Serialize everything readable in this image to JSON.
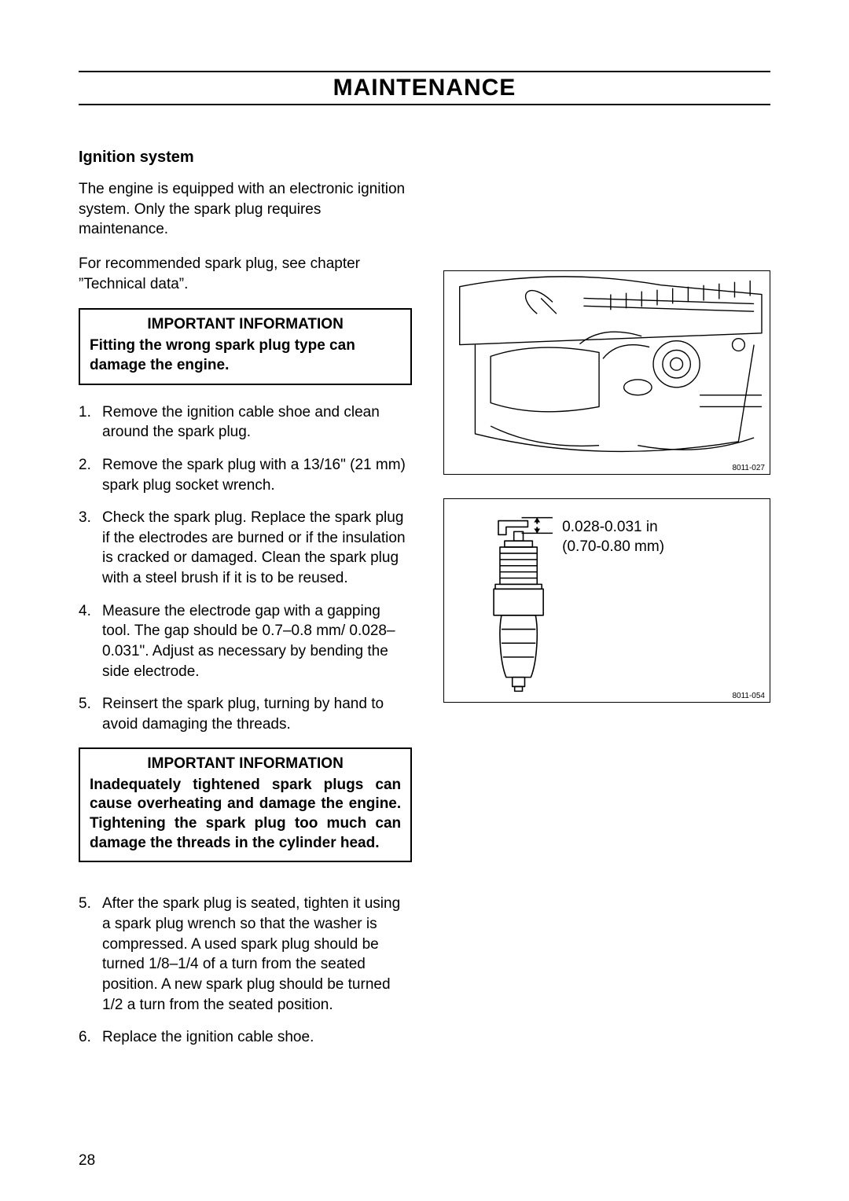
{
  "page_title": "MAINTENANCE",
  "title_fontsize": 30,
  "subhead": "Ignition system",
  "subhead_fontsize": 20,
  "body_fontsize": 19,
  "intro1": "The engine is equipped with an electronic ignition system. Only the spark plug requires maintenance.",
  "intro2": "For recommended spark plug, see chapter ”Technical data”.",
  "callout1_title": "IMPORTANT INFORMATION",
  "callout1_body": "Fitting the wrong spark plug type can damage the engine.",
  "steps_a": [
    "Remove the ignition cable shoe and clean around the spark plug.",
    "Remove the spark plug with a 13/16\" (21 mm) spark plug socket wrench.",
    "Check the spark plug. Replace the spark plug if the electrodes are burned or if the insulation is cracked or damaged. Clean the spark plug with a steel brush if it is to be reused.",
    "Measure the electrode gap with a gapping tool. The gap should be 0.7–0.8 mm/ 0.028–0.031\". Adjust as necessary by bending the side electrode.",
    "Reinsert the spark plug, turning by hand to avoid damaging the threads."
  ],
  "callout2_title": "IMPORTANT INFORMATION",
  "callout2_body": "Inadequately tightened spark plugs can cause overheating and damage the engine. Tightening the spark plug too much can damage the threads in the cylinder head.",
  "steps_b": [
    {
      "n": "5.",
      "t": "After the spark plug is seated, tighten it using a spark plug wrench so that the washer is compressed. A used spark plug should be turned 1/8–1/4 of a turn from the seated position. A new spark plug should be turned\n1/2 a turn from the seated position."
    },
    {
      "n": "6.",
      "t": "Replace the ignition cable shoe."
    }
  ],
  "fig1_id": "8011-027",
  "fig2_id": "8011-054",
  "gap_line1": "0.028-0.031 in",
  "gap_line2": "(0.70-0.80 mm)",
  "page_number": "28",
  "colors": {
    "text": "#000000",
    "bg": "#ffffff",
    "stroke": "#000000"
  }
}
